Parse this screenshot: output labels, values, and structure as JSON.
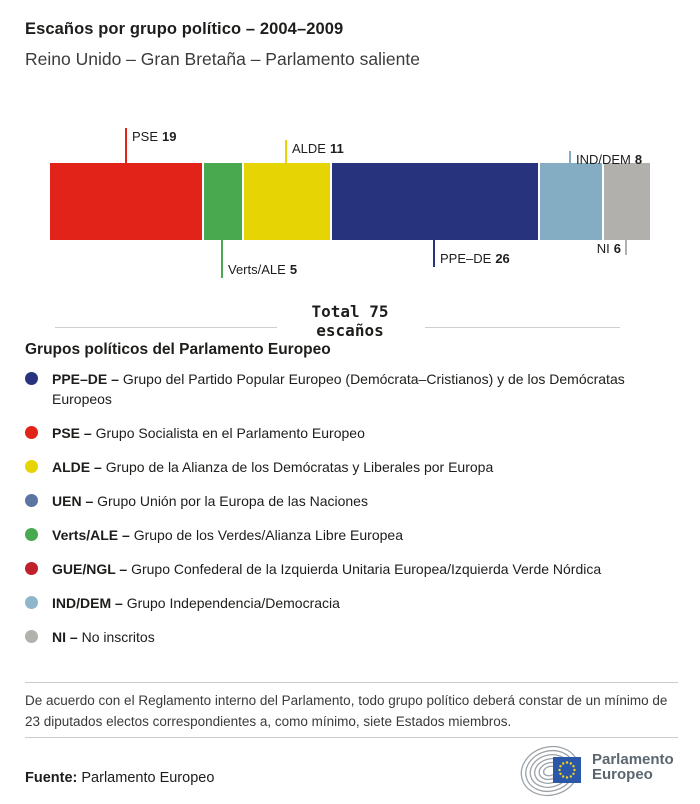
{
  "header": {
    "title": "Escaños por grupo político – 2004–2009",
    "subtitle": "Reino Unido – Gran Bretaña – Parlamento saliente"
  },
  "chart_data": {
    "type": "bar",
    "orientation": "horizontal-stacked",
    "title": "Escaños por grupo político – 2004–2009",
    "total": 75,
    "total_label": "Total 75",
    "total_unit": "escaños",
    "segments": [
      {
        "name": "PSE",
        "value": 19,
        "color": "#e2231a",
        "callout": "top",
        "tick_len": 35
      },
      {
        "name": "Verts/ALE",
        "value": 5,
        "color": "#49a94e",
        "callout": "bottom",
        "tick_len": 38
      },
      {
        "name": "ALDE",
        "value": 11,
        "color": "#e7d405",
        "callout": "top",
        "tick_len": 23
      },
      {
        "name": "PPE–DE",
        "value": 26,
        "color": "#28337e",
        "callout": "bottom",
        "tick_len": 27
      },
      {
        "name": "IND/DEM",
        "value": 8,
        "color": "#84adc4",
        "callout": "top",
        "tick_len": 12
      },
      {
        "name": "NI",
        "value": 6,
        "color": "#b2b0ac",
        "callout": "bottom",
        "tick_len": 15,
        "label_side": "left"
      }
    ]
  },
  "legend": {
    "heading": "Grupos políticos del Parlamento Europeo",
    "separator": "–",
    "items": [
      {
        "abbr": "PPE–DE",
        "color": "#28337e",
        "desc": "Grupo del Partido Popular Europeo (Demócrata–Cristianos) y de los Demócratas Europeos"
      },
      {
        "abbr": "PSE",
        "color": "#e2231a",
        "desc": "Grupo Socialista en el Parlamento Europeo"
      },
      {
        "abbr": "ALDE",
        "color": "#e7d405",
        "desc": "Grupo de la Alianza de los Demócratas y Liberales por Europa"
      },
      {
        "abbr": "UEN",
        "color": "#5d74a3",
        "desc": "Grupo Unión por la Europa de las Naciones"
      },
      {
        "abbr": "Verts/ALE",
        "color": "#49a94e",
        "desc": "Grupo de los Verdes/Alianza Libre Europea"
      },
      {
        "abbr": "GUE/NGL",
        "color": "#bf202a",
        "desc": "Grupo Confederal de la Izquierda Unitaria Europea/Izquierda Verde Nórdica"
      },
      {
        "abbr": "IND/DEM",
        "color": "#8fb6cd",
        "desc": "Grupo Independencia/Democracia"
      },
      {
        "abbr": "NI",
        "color": "#b3b1ad",
        "desc": "No inscritos"
      }
    ]
  },
  "footnote": "De acuerdo con el Reglamento interno del Parlamento, todo grupo político deberá constar de un mínimo de 23 diputados electos correspondientes a, como mínimo, siete Estados miembros.",
  "source": {
    "label": "Fuente:",
    "value": "Parlamento Europeo"
  },
  "logo": {
    "line1": "Parlamento",
    "line2": "Europeo",
    "flag_color": "#2a57a7",
    "star_color": "#f7d417"
  }
}
